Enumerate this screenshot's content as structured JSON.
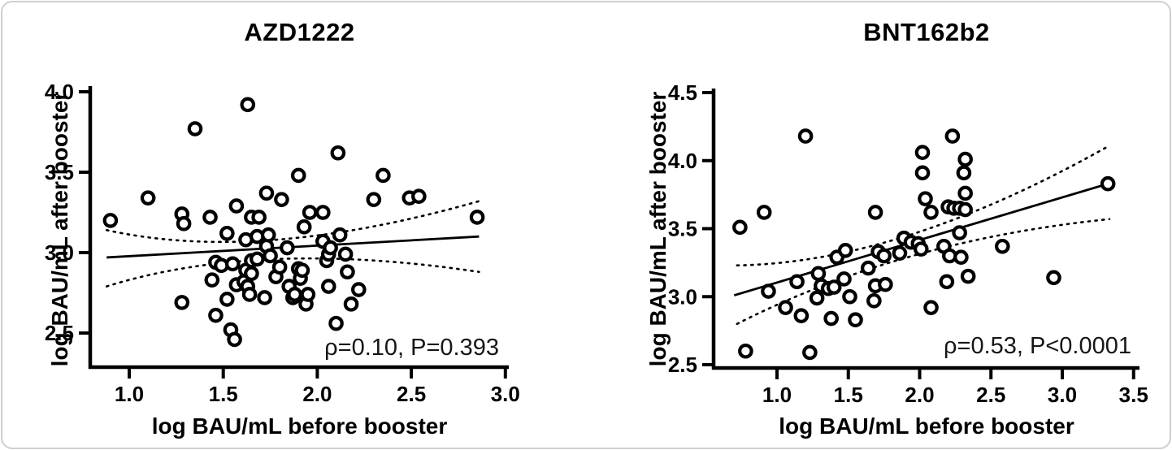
{
  "figure": {
    "background": "#ffffff",
    "border_color": "#cfcfcf",
    "ink_color": "#000000"
  },
  "chart_data": [
    {
      "type": "scatter",
      "title": "AZD1222",
      "xlabel": "log BAU/mL before booster",
      "ylabel": "log BAU/mL after booster",
      "annotation": "ρ=0.10, P=0.393",
      "xlim": [
        0.79,
        3.02
      ],
      "ylim": [
        2.5,
        4.0
      ],
      "xticks": [
        "1.0",
        "1.5",
        "2.0",
        "2.5",
        "3.0"
      ],
      "yticks": [
        "4.0",
        "3.5",
        "3.0",
        "2.5"
      ],
      "grid": false,
      "legend": null,
      "marker": "open-circle",
      "points": [
        [
          0.9,
          3.2
        ],
        [
          1.1,
          3.34
        ],
        [
          1.28,
          3.24
        ],
        [
          1.29,
          3.18
        ],
        [
          1.35,
          3.77
        ],
        [
          1.28,
          2.69
        ],
        [
          1.43,
          3.22
        ],
        [
          1.44,
          2.83
        ],
        [
          1.46,
          2.94
        ],
        [
          1.46,
          2.61
        ],
        [
          1.49,
          2.92
        ],
        [
          1.52,
          3.12
        ],
        [
          1.52,
          2.71
        ],
        [
          1.54,
          2.52
        ],
        [
          1.55,
          2.93
        ],
        [
          1.56,
          2.46
        ],
        [
          1.57,
          2.8
        ],
        [
          1.57,
          3.29
        ],
        [
          1.61,
          2.82
        ],
        [
          1.62,
          3.08
        ],
        [
          1.62,
          2.89
        ],
        [
          1.63,
          3.92
        ],
        [
          1.63,
          2.79
        ],
        [
          1.64,
          2.74
        ],
        [
          1.65,
          2.87
        ],
        [
          1.65,
          3.22
        ],
        [
          1.65,
          2.95
        ],
        [
          1.68,
          3.1
        ],
        [
          1.68,
          2.96
        ],
        [
          1.69,
          3.22
        ],
        [
          1.72,
          2.72
        ],
        [
          1.73,
          3.37
        ],
        [
          1.73,
          3.04
        ],
        [
          1.74,
          3.11
        ],
        [
          1.75,
          2.98
        ],
        [
          1.78,
          2.85
        ],
        [
          1.8,
          2.91
        ],
        [
          1.81,
          3.33
        ],
        [
          1.84,
          3.03
        ],
        [
          1.85,
          2.79
        ],
        [
          1.87,
          2.72
        ],
        [
          1.88,
          2.74
        ],
        [
          1.9,
          2.9
        ],
        [
          1.9,
          3.48
        ],
        [
          1.91,
          2.84
        ],
        [
          1.92,
          2.89
        ],
        [
          1.93,
          3.16
        ],
        [
          1.94,
          2.68
        ],
        [
          1.95,
          2.74
        ],
        [
          1.96,
          3.25
        ],
        [
          2.03,
          3.25
        ],
        [
          2.03,
          3.07
        ],
        [
          2.05,
          2.95
        ],
        [
          2.06,
          2.99
        ],
        [
          2.06,
          2.79
        ],
        [
          2.07,
          3.03
        ],
        [
          2.11,
          3.62
        ],
        [
          2.1,
          2.56
        ],
        [
          2.12,
          3.11
        ],
        [
          2.15,
          2.99
        ],
        [
          2.16,
          2.88
        ],
        [
          2.18,
          2.68
        ],
        [
          2.22,
          2.77
        ],
        [
          2.3,
          3.33
        ],
        [
          2.35,
          3.48
        ],
        [
          2.49,
          3.34
        ],
        [
          2.54,
          3.35
        ],
        [
          2.85,
          3.22
        ]
      ],
      "fit_line": {
        "x": [
          0.88,
          2.86
        ],
        "y": [
          2.97,
          3.1
        ]
      },
      "ci_upper": {
        "x": [
          0.88,
          1.78,
          2.86
        ],
        "y": [
          3.14,
          3.08,
          3.32
        ]
      },
      "ci_lower": {
        "x": [
          0.88,
          1.78,
          2.86
        ],
        "y": [
          2.79,
          2.96,
          2.88
        ]
      }
    },
    {
      "type": "scatter",
      "title": "BNT162b2",
      "xlabel": "log BAU/mL before booster",
      "ylabel": "log BAU/mL after booster",
      "annotation": "ρ=0.53, P<0.0001",
      "xlim": [
        0.56,
        3.54
      ],
      "ylim": [
        2.5,
        4.5
      ],
      "xticks": [
        "1.0",
        "1.5",
        "2.0",
        "2.5",
        "3.0",
        "3.5"
      ],
      "yticks": [
        "4.5",
        "4.0",
        "3.5",
        "3.0",
        "2.5"
      ],
      "grid": false,
      "legend": null,
      "marker": "open-circle",
      "points": [
        [
          0.74,
          3.51
        ],
        [
          0.78,
          2.6
        ],
        [
          0.91,
          3.62
        ],
        [
          0.94,
          3.04
        ],
        [
          1.06,
          2.92
        ],
        [
          1.14,
          3.11
        ],
        [
          1.17,
          2.86
        ],
        [
          1.2,
          4.18
        ],
        [
          1.23,
          2.59
        ],
        [
          1.28,
          2.99
        ],
        [
          1.29,
          3.17
        ],
        [
          1.31,
          3.08
        ],
        [
          1.36,
          3.06
        ],
        [
          1.38,
          2.84
        ],
        [
          1.4,
          3.07
        ],
        [
          1.42,
          3.29
        ],
        [
          1.47,
          3.13
        ],
        [
          1.48,
          3.34
        ],
        [
          1.51,
          3.0
        ],
        [
          1.55,
          2.83
        ],
        [
          1.64,
          3.21
        ],
        [
          1.68,
          2.97
        ],
        [
          1.69,
          3.08
        ],
        [
          1.69,
          3.62
        ],
        [
          1.71,
          3.33
        ],
        [
          1.75,
          3.3
        ],
        [
          1.76,
          3.09
        ],
        [
          1.86,
          3.32
        ],
        [
          1.89,
          3.43
        ],
        [
          1.94,
          3.4
        ],
        [
          1.99,
          3.39
        ],
        [
          2.01,
          3.35
        ],
        [
          2.02,
          4.06
        ],
        [
          2.02,
          3.91
        ],
        [
          2.04,
          3.72
        ],
        [
          2.08,
          3.62
        ],
        [
          2.08,
          2.92
        ],
        [
          2.17,
          3.37
        ],
        [
          2.19,
          3.11
        ],
        [
          2.2,
          3.66
        ],
        [
          2.24,
          3.65
        ],
        [
          2.28,
          3.65
        ],
        [
          2.32,
          3.64
        ],
        [
          2.31,
          3.91
        ],
        [
          2.32,
          4.01
        ],
        [
          2.32,
          3.76
        ],
        [
          2.23,
          4.18
        ],
        [
          2.28,
          3.47
        ],
        [
          2.21,
          3.3
        ],
        [
          2.29,
          3.29
        ],
        [
          2.34,
          3.15
        ],
        [
          2.58,
          3.37
        ],
        [
          2.94,
          3.14
        ],
        [
          3.32,
          3.83
        ]
      ],
      "fit_line": {
        "x": [
          0.7,
          3.32
        ],
        "y": [
          3.01,
          3.83
        ]
      },
      "ci_upper": {
        "x": [
          0.72,
          1.95,
          3.33
        ],
        "y": [
          3.23,
          3.46,
          4.11
        ]
      },
      "ci_lower": {
        "x": [
          0.72,
          1.95,
          3.33
        ],
        "y": [
          2.8,
          3.3,
          3.57
        ]
      }
    }
  ]
}
